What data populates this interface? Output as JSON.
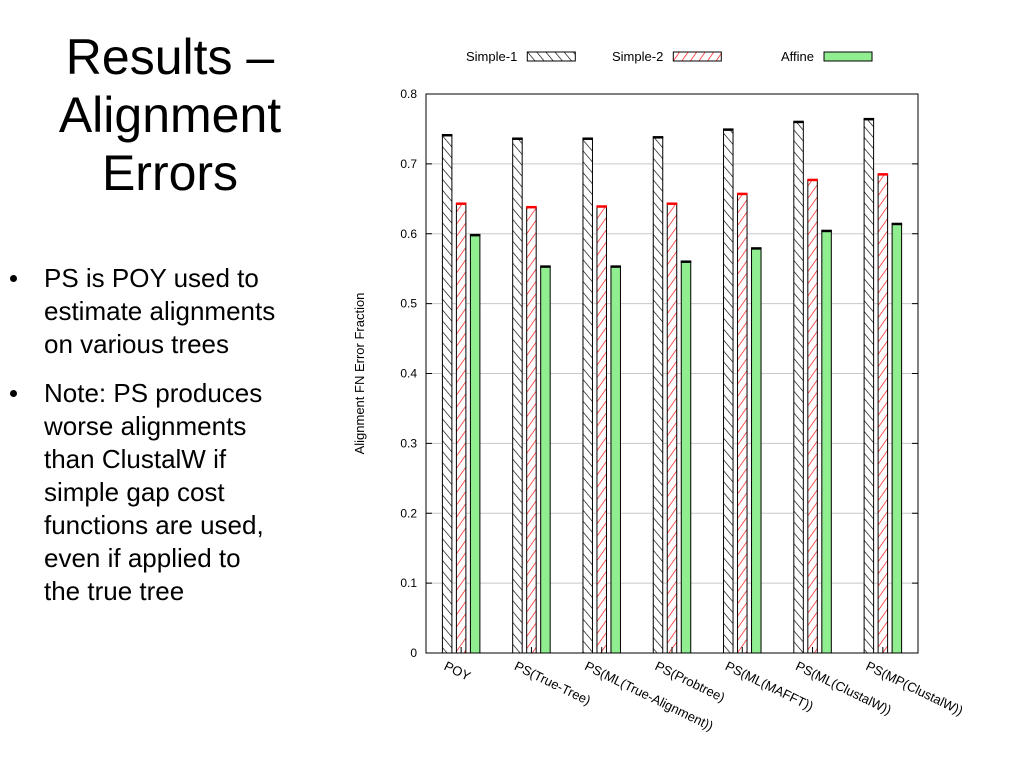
{
  "slide": {
    "title_lines": [
      "Results –",
      "Alignment",
      "Errors"
    ],
    "bullets": [
      {
        "lines": [
          "PS is POY used to",
          "estimate alignments",
          "on various trees"
        ]
      },
      {
        "lines": [
          "Note: PS produces",
          "worse alignments",
          "than ClustalW if",
          "simple gap cost",
          "functions are used,",
          "even if applied to",
          "the true tree"
        ]
      }
    ]
  },
  "chart_data": {
    "type": "bar",
    "title": "",
    "xlabel": "",
    "ylabel": "Alignment FN Error Fraction",
    "ylim": [
      0,
      0.8
    ],
    "yticks": [
      "0",
      "0.1",
      "0.2",
      "0.3",
      "0.4",
      "0.5",
      "0.6",
      "0.7",
      "0.8"
    ],
    "grid": true,
    "legend_position": "top",
    "categories": [
      "POY",
      "PS(True-Tree)",
      "PS(ML(True-Alignment))",
      "PS(Probtree)",
      "PS(ML(MAFFT))",
      "PS(ML(ClustalW))",
      "PS(MP(ClustalW))"
    ],
    "series": [
      {
        "name": "Simple-1",
        "pattern": "black-hatch",
        "color": "#000000",
        "values": [
          0.741,
          0.736,
          0.736,
          0.738,
          0.749,
          0.76,
          0.764
        ]
      },
      {
        "name": "Simple-2",
        "pattern": "red-hatch",
        "color": "#ff0000",
        "values": [
          0.643,
          0.638,
          0.639,
          0.643,
          0.657,
          0.677,
          0.685
        ]
      },
      {
        "name": "Affine",
        "pattern": "solid",
        "color": "#90ee90",
        "values": [
          0.598,
          0.553,
          0.553,
          0.56,
          0.579,
          0.604,
          0.614
        ]
      }
    ]
  }
}
